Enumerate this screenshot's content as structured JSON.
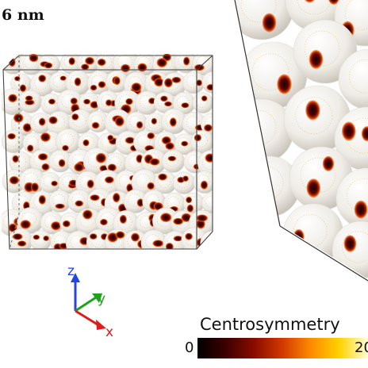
{
  "figure": {
    "size_label": "6 nm",
    "colorbar": {
      "title": "Centrosymmetry",
      "min_label": "0",
      "max_label": "20",
      "stops": [
        "#000000",
        "#3d0000",
        "#8a0c00",
        "#d33a00",
        "#ff8c00",
        "#ffd300",
        "#ffffd8"
      ]
    },
    "axes": {
      "x": {
        "label": "x",
        "color": "#e11a1a"
      },
      "y": {
        "label": "y",
        "color": "#1fa21f"
      },
      "z": {
        "label": "z",
        "color": "#2545e0"
      }
    },
    "colors": {
      "grain_surface": "#f2f0ec",
      "defect_core": "#3a0000",
      "defect_rim": "#e0501a"
    }
  }
}
